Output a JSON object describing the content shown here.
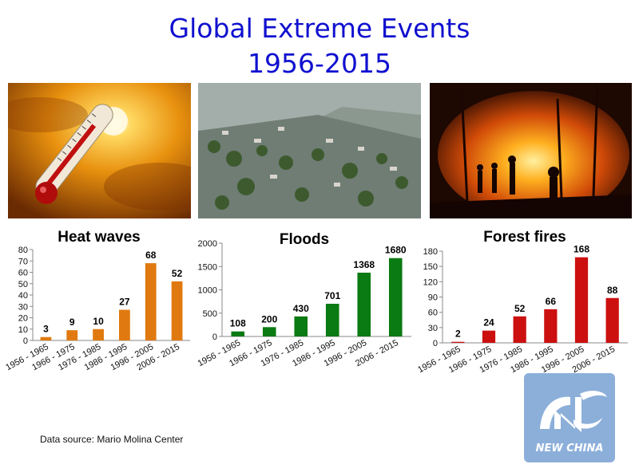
{
  "page": {
    "title_line1": "Global Extreme Events",
    "title_line2": "1956-2015",
    "source": "Data source: Mario Molina Center",
    "logo_text": "NEW CHINA"
  },
  "photos": [
    {
      "icon": "thermometer-sun-icon"
    },
    {
      "icon": "flooded-town-photo"
    },
    {
      "icon": "forest-fire-photo"
    }
  ],
  "chart_data": [
    {
      "type": "bar",
      "title": "Heat waves",
      "categories": [
        "1956 - 1965",
        "1966 - 1975",
        "1976 - 1985",
        "1986 - 1995",
        "1996 - 2005",
        "2006 - 2015"
      ],
      "values": [
        3,
        9,
        10,
        27,
        68,
        52
      ],
      "ylim": [
        0,
        80
      ],
      "yticks": [
        0,
        10,
        20,
        30,
        40,
        50,
        60,
        70,
        80
      ],
      "color": "#e07a10"
    },
    {
      "type": "bar",
      "title": "Floods",
      "categories": [
        "1956 - 1965",
        "1966 - 1975",
        "1976 - 1985",
        "1986 - 1995",
        "1996 - 2005",
        "2006 - 2015"
      ],
      "values": [
        108,
        200,
        430,
        701,
        1368,
        1680
      ],
      "ylim": [
        0,
        2000
      ],
      "yticks": [
        0,
        500,
        1000,
        1500,
        2000
      ],
      "color": "#0a7a12"
    },
    {
      "type": "bar",
      "title": "Forest fires",
      "categories": [
        "1956 - 1965",
        "1966 - 1975",
        "1976 - 1985",
        "1986 - 1995",
        "1996 - 2005",
        "2006 - 2015"
      ],
      "values": [
        2,
        24,
        52,
        66,
        168,
        88
      ],
      "ylim": [
        0,
        180
      ],
      "yticks": [
        0,
        30,
        60,
        90,
        120,
        150,
        180
      ],
      "color": "#cc1010"
    }
  ]
}
